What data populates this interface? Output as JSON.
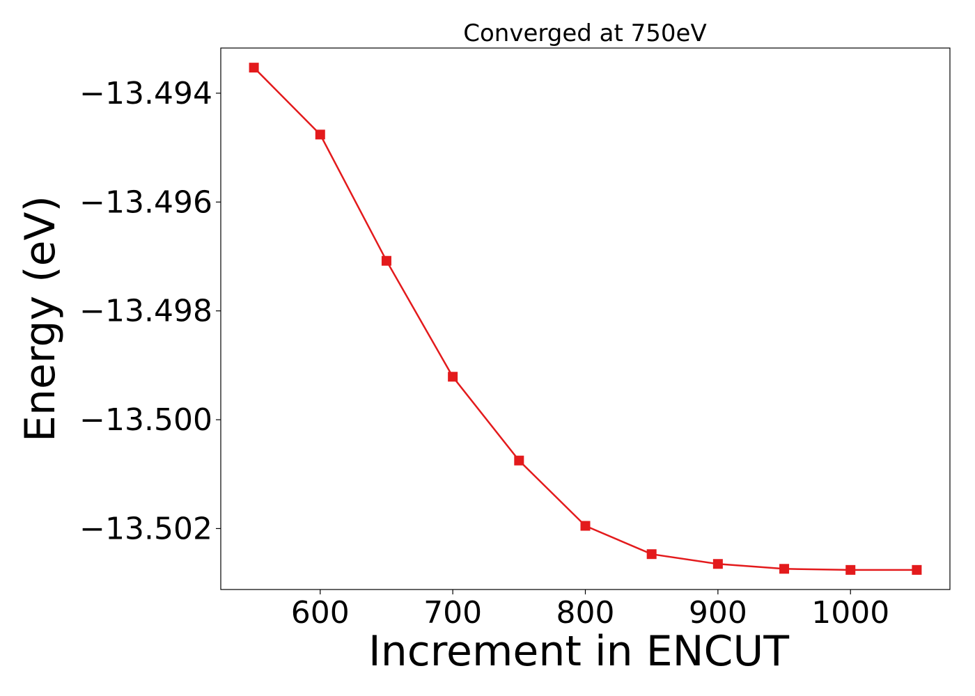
{
  "chart_data": {
    "type": "line",
    "title": "Converged at 750eV",
    "xlabel": "Increment in ENCUT",
    "ylabel": "Energy (eV)",
    "x": [
      550,
      600,
      650,
      700,
      750,
      800,
      850,
      900,
      950,
      1000,
      1050
    ],
    "series": [
      {
        "values": [
          -13.49353,
          -13.49476,
          -13.49708,
          -13.49921,
          -13.50075,
          -13.50195,
          -13.50247,
          -13.50265,
          -13.50274,
          -13.50276,
          -13.50276
        ],
        "color": "#e31a1c",
        "marker": "square"
      }
    ],
    "xticks": [
      600,
      700,
      800,
      900,
      1000
    ],
    "xtick_labels": [
      "600",
      "700",
      "800",
      "900",
      "1000"
    ],
    "yticks": [
      -13.494,
      -13.496,
      -13.498,
      -13.5,
      -13.502
    ],
    "ytick_labels": [
      "−13.494",
      "−13.496",
      "−13.498",
      "−13.500",
      "−13.502"
    ],
    "xlim": [
      525,
      1075
    ],
    "ylim": [
      -13.50312,
      -13.49317
    ],
    "grid": false,
    "legend": "none"
  }
}
